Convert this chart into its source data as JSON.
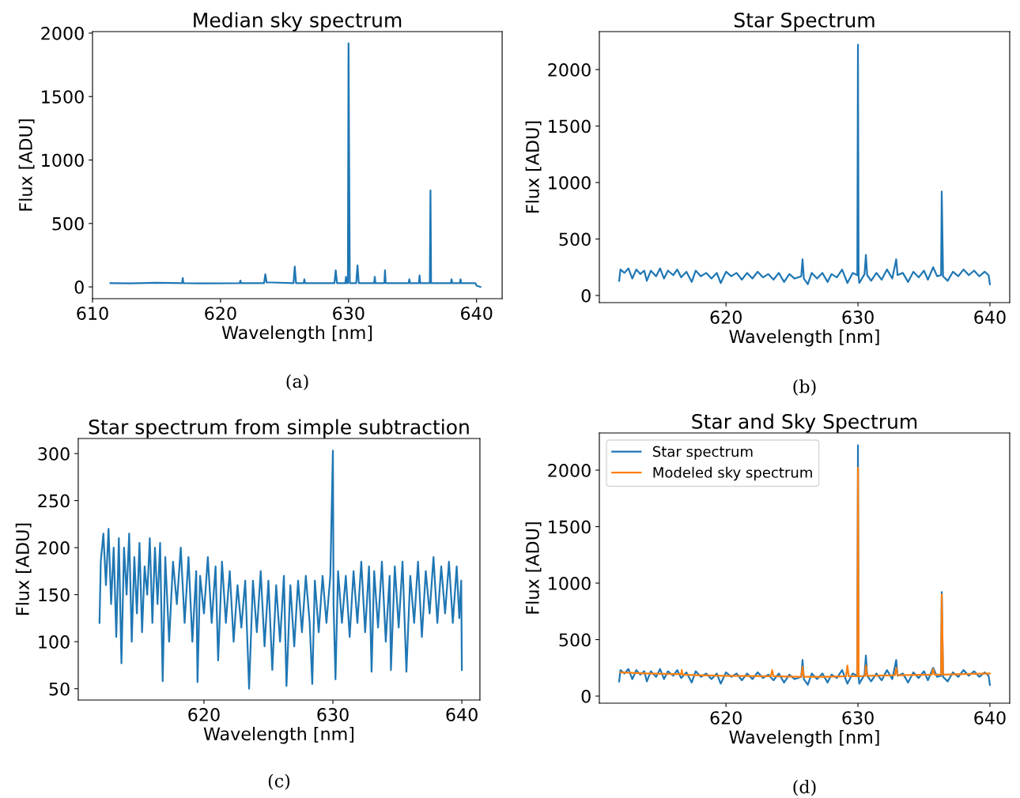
{
  "chart_data": [
    {
      "type": "line",
      "title": "Median sky spectrum",
      "xlabel": "Wavelength [nm]",
      "ylabel": "Flux [ADU]",
      "xlim": [
        610,
        642
      ],
      "xticks": [
        610,
        620,
        630,
        640
      ],
      "ylim": [
        -93,
        2012
      ],
      "yticks": [
        0,
        500,
        1000,
        1500,
        2000
      ],
      "grid": false,
      "legend": false,
      "annotations": [
        "(a)"
      ],
      "series": [
        {
          "color": "#1f77b4",
          "x": [
            611.4,
            613,
            615,
            617.0,
            617.05,
            617.1,
            619,
            621.5,
            621.55,
            621.6,
            623.4,
            623.5,
            623.6,
            624,
            625.7,
            625.8,
            625.9,
            626.5,
            626.55,
            626.6,
            628.9,
            629.0,
            629.1,
            629.75,
            629.8,
            629.85,
            629.95,
            630.0,
            630.1,
            630.6,
            630.7,
            630.8,
            632.0,
            632.05,
            632.1,
            632.8,
            632.85,
            632.9,
            634.7,
            634.75,
            634.8,
            635.5,
            635.55,
            635.6,
            636.35,
            636.4,
            636.45,
            638,
            638.05,
            638.1,
            638.7,
            638.75,
            638.8,
            639.9,
            640.0,
            640.3
          ],
          "values": [
            30,
            28,
            32,
            30,
            70,
            30,
            28,
            30,
            50,
            30,
            30,
            100,
            35,
            35,
            30,
            160,
            30,
            30,
            60,
            30,
            30,
            130,
            30,
            30,
            80,
            30,
            30,
            1920,
            30,
            30,
            170,
            30,
            30,
            80,
            30,
            30,
            130,
            30,
            30,
            60,
            30,
            30,
            90,
            30,
            30,
            760,
            30,
            30,
            60,
            30,
            30,
            60,
            30,
            30,
            10,
            0
          ]
        }
      ]
    },
    {
      "type": "line",
      "title": "Star Spectrum",
      "xlabel": "Wavelength [nm]",
      "ylabel": "Flux [ADU]",
      "xlim": [
        610.4,
        641.5
      ],
      "xticks": [
        620,
        630,
        640
      ],
      "ylim": [
        -63,
        2336
      ],
      "yticks": [
        0,
        500,
        1000,
        1500,
        2000
      ],
      "grid": false,
      "legend": false,
      "annotations": [
        "(b)"
      ],
      "series": [
        {
          "color": "#1f77b4",
          "x": [
            611.9,
            612.0,
            612.3,
            612.6,
            612.9,
            613.2,
            613.5,
            613.8,
            614.0,
            614.3,
            614.7,
            615.0,
            615.3,
            615.6,
            616.0,
            616.3,
            616.6,
            617.0,
            617.4,
            617.7,
            618.1,
            618.5,
            618.9,
            619.3,
            619.6,
            620.0,
            620.4,
            620.8,
            621.2,
            621.6,
            622.0,
            622.4,
            622.8,
            623.2,
            623.6,
            624.0,
            624.4,
            624.8,
            625.2,
            625.7,
            625.8,
            625.9,
            626.2,
            626.5,
            626.9,
            627.3,
            627.7,
            628.0,
            628.4,
            628.8,
            629.2,
            629.6,
            629.95,
            630.0,
            630.05,
            630.1,
            630.5,
            630.6,
            630.7,
            631.0,
            631.4,
            631.8,
            632.2,
            632.6,
            632.9,
            633.0,
            633.4,
            633.8,
            634.2,
            634.6,
            635.0,
            635.3,
            635.7,
            636.0,
            636.3,
            636.35,
            636.45,
            636.8,
            637.2,
            637.6,
            638.0,
            638.4,
            638.8,
            639.2,
            639.6,
            639.9,
            640.0
          ],
          "values": [
            130,
            230,
            200,
            240,
            150,
            230,
            190,
            220,
            130,
            220,
            170,
            240,
            150,
            220,
            180,
            230,
            160,
            210,
            120,
            220,
            170,
            200,
            150,
            200,
            110,
            210,
            170,
            200,
            140,
            200,
            150,
            210,
            160,
            190,
            140,
            200,
            120,
            190,
            150,
            170,
            320,
            150,
            100,
            200,
            150,
            200,
            120,
            190,
            160,
            230,
            110,
            200,
            180,
            2220,
            170,
            110,
            190,
            360,
            180,
            130,
            200,
            140,
            230,
            150,
            320,
            180,
            200,
            120,
            210,
            160,
            220,
            140,
            250,
            170,
            180,
            920,
            170,
            130,
            210,
            170,
            230,
            180,
            220,
            170,
            210,
            180,
            100
          ]
        }
      ]
    },
    {
      "type": "line",
      "title": "Star spectrum from simple subtraction",
      "xlabel": "Wavelength [nm]",
      "ylabel": "Flux [ADU]",
      "xlim": [
        610.25,
        641.4
      ],
      "xticks": [
        620,
        630,
        640
      ],
      "ylim": [
        38,
        316
      ],
      "yticks": [
        50,
        100,
        150,
        200,
        250,
        300
      ],
      "grid": false,
      "legend": false,
      "annotations": [
        "(c)"
      ],
      "series": [
        {
          "color": "#1f77b4",
          "x": [
            611.9,
            612.0,
            612.2,
            612.4,
            612.6,
            612.8,
            613.0,
            613.2,
            613.4,
            613.6,
            613.8,
            614.0,
            614.2,
            614.4,
            614.6,
            614.8,
            615.0,
            615.2,
            615.4,
            615.6,
            615.8,
            616.0,
            616.2,
            616.4,
            616.6,
            616.8,
            617.0,
            617.3,
            617.6,
            617.9,
            618.2,
            618.5,
            618.8,
            619.1,
            619.4,
            619.5,
            619.7,
            620.0,
            620.3,
            620.6,
            620.9,
            621.1,
            621.4,
            621.7,
            622.0,
            622.3,
            622.6,
            622.9,
            623.2,
            623.5,
            623.8,
            624.1,
            624.4,
            624.7,
            625.0,
            625.3,
            625.6,
            625.9,
            626.2,
            626.4,
            626.7,
            627.0,
            627.3,
            627.6,
            627.9,
            628.2,
            628.4,
            628.6,
            628.9,
            629.2,
            629.5,
            629.8,
            630.0,
            630.05,
            630.2,
            630.4,
            630.7,
            631.0,
            631.3,
            631.6,
            631.9,
            632.2,
            632.5,
            632.8,
            633.0,
            633.2,
            633.5,
            633.8,
            634.1,
            634.4,
            634.5,
            634.8,
            635.1,
            635.4,
            635.7,
            636.0,
            636.3,
            636.6,
            636.9,
            637.2,
            637.5,
            637.8,
            638.1,
            638.4,
            638.7,
            639.0,
            639.3,
            639.6,
            639.8,
            639.95,
            640.0
          ],
          "values": [
            120,
            185,
            215,
            160,
            220,
            140,
            200,
            105,
            210,
            77,
            200,
            150,
            215,
            100,
            190,
            130,
            205,
            110,
            180,
            150,
            210,
            120,
            200,
            140,
            205,
            58,
            190,
            100,
            185,
            140,
            200,
            120,
            190,
            100,
            175,
            57,
            170,
            130,
            190,
            120,
            180,
            80,
            185,
            120,
            175,
            100,
            160,
            115,
            165,
            50,
            165,
            110,
            175,
            95,
            165,
            70,
            160,
            100,
            170,
            53,
            160,
            95,
            165,
            110,
            170,
            120,
            55,
            165,
            110,
            170,
            120,
            170,
            303,
            140,
            60,
            175,
            120,
            170,
            105,
            175,
            120,
            185,
            110,
            180,
            68,
            175,
            115,
            185,
            100,
            170,
            70,
            180,
            115,
            185,
            68,
            170,
            120,
            185,
            105,
            175,
            130,
            190,
            120,
            180,
            130,
            185,
            120,
            180,
            125,
            165,
            70
          ]
        }
      ]
    },
    {
      "type": "line",
      "title": "Star and Sky Spectrum",
      "xlabel": "Wavelength [nm]",
      "ylabel": "Flux [ADU]",
      "xlim": [
        610.4,
        641.5
      ],
      "xticks": [
        620,
        630,
        640
      ],
      "ylim": [
        -63,
        2329
      ],
      "yticks": [
        0,
        500,
        1000,
        1500,
        2000
      ],
      "grid": false,
      "legend": "top left",
      "annotations": [
        "(d)"
      ],
      "series": [
        {
          "name": "Star spectrum",
          "color": "#1f77b4",
          "x": [
            611.9,
            612.0,
            612.3,
            612.6,
            612.9,
            613.2,
            613.5,
            613.8,
            614.0,
            614.3,
            614.7,
            615.0,
            615.3,
            615.6,
            616.0,
            616.3,
            616.6,
            617.0,
            617.4,
            617.7,
            618.1,
            618.5,
            618.9,
            619.3,
            619.6,
            620.0,
            620.4,
            620.8,
            621.2,
            621.6,
            622.0,
            622.4,
            622.8,
            623.2,
            623.6,
            624.0,
            624.4,
            624.8,
            625.2,
            625.7,
            625.8,
            625.9,
            626.2,
            626.5,
            626.9,
            627.3,
            627.7,
            628.0,
            628.4,
            628.8,
            629.2,
            629.6,
            629.95,
            630.0,
            630.05,
            630.1,
            630.5,
            630.6,
            630.7,
            631.0,
            631.4,
            631.8,
            632.2,
            632.6,
            632.9,
            633.0,
            633.4,
            633.8,
            634.2,
            634.6,
            635.0,
            635.3,
            635.7,
            636.0,
            636.3,
            636.35,
            636.45,
            636.8,
            637.2,
            637.6,
            638.0,
            638.4,
            638.8,
            639.2,
            639.6,
            639.9,
            640.0
          ],
          "values": [
            130,
            230,
            200,
            240,
            150,
            230,
            190,
            220,
            130,
            220,
            170,
            240,
            150,
            220,
            180,
            230,
            160,
            210,
            120,
            220,
            170,
            200,
            150,
            200,
            110,
            210,
            170,
            200,
            140,
            200,
            150,
            210,
            160,
            190,
            140,
            200,
            120,
            190,
            150,
            170,
            320,
            150,
            100,
            200,
            150,
            200,
            120,
            190,
            160,
            230,
            110,
            200,
            180,
            2220,
            170,
            110,
            190,
            360,
            180,
            130,
            200,
            140,
            230,
            150,
            320,
            180,
            200,
            120,
            210,
            160,
            220,
            140,
            250,
            170,
            180,
            920,
            170,
            130,
            210,
            170,
            230,
            180,
            220,
            170,
            210,
            180,
            100
          ]
        },
        {
          "name": "Modeled sky spectrum",
          "color": "#ff7f0e",
          "x": [
            612.0,
            614,
            616,
            616.6,
            616.65,
            616.7,
            618,
            620,
            623.4,
            623.5,
            623.6,
            625.7,
            625.8,
            625.9,
            627.5,
            629.1,
            629.2,
            629.3,
            629.95,
            630.0,
            630.05,
            630.55,
            630.6,
            630.7,
            632.8,
            632.9,
            633.0,
            635.6,
            635.7,
            635.8,
            636.3,
            636.35,
            636.45,
            638,
            640
          ],
          "values": [
            210,
            200,
            195,
            195,
            230,
            190,
            185,
            180,
            175,
            230,
            175,
            170,
            260,
            170,
            170,
            175,
            270,
            175,
            175,
            2020,
            175,
            180,
            270,
            180,
            185,
            250,
            185,
            190,
            240,
            190,
            190,
            900,
            190,
            195,
            200
          ]
        }
      ]
    }
  ]
}
